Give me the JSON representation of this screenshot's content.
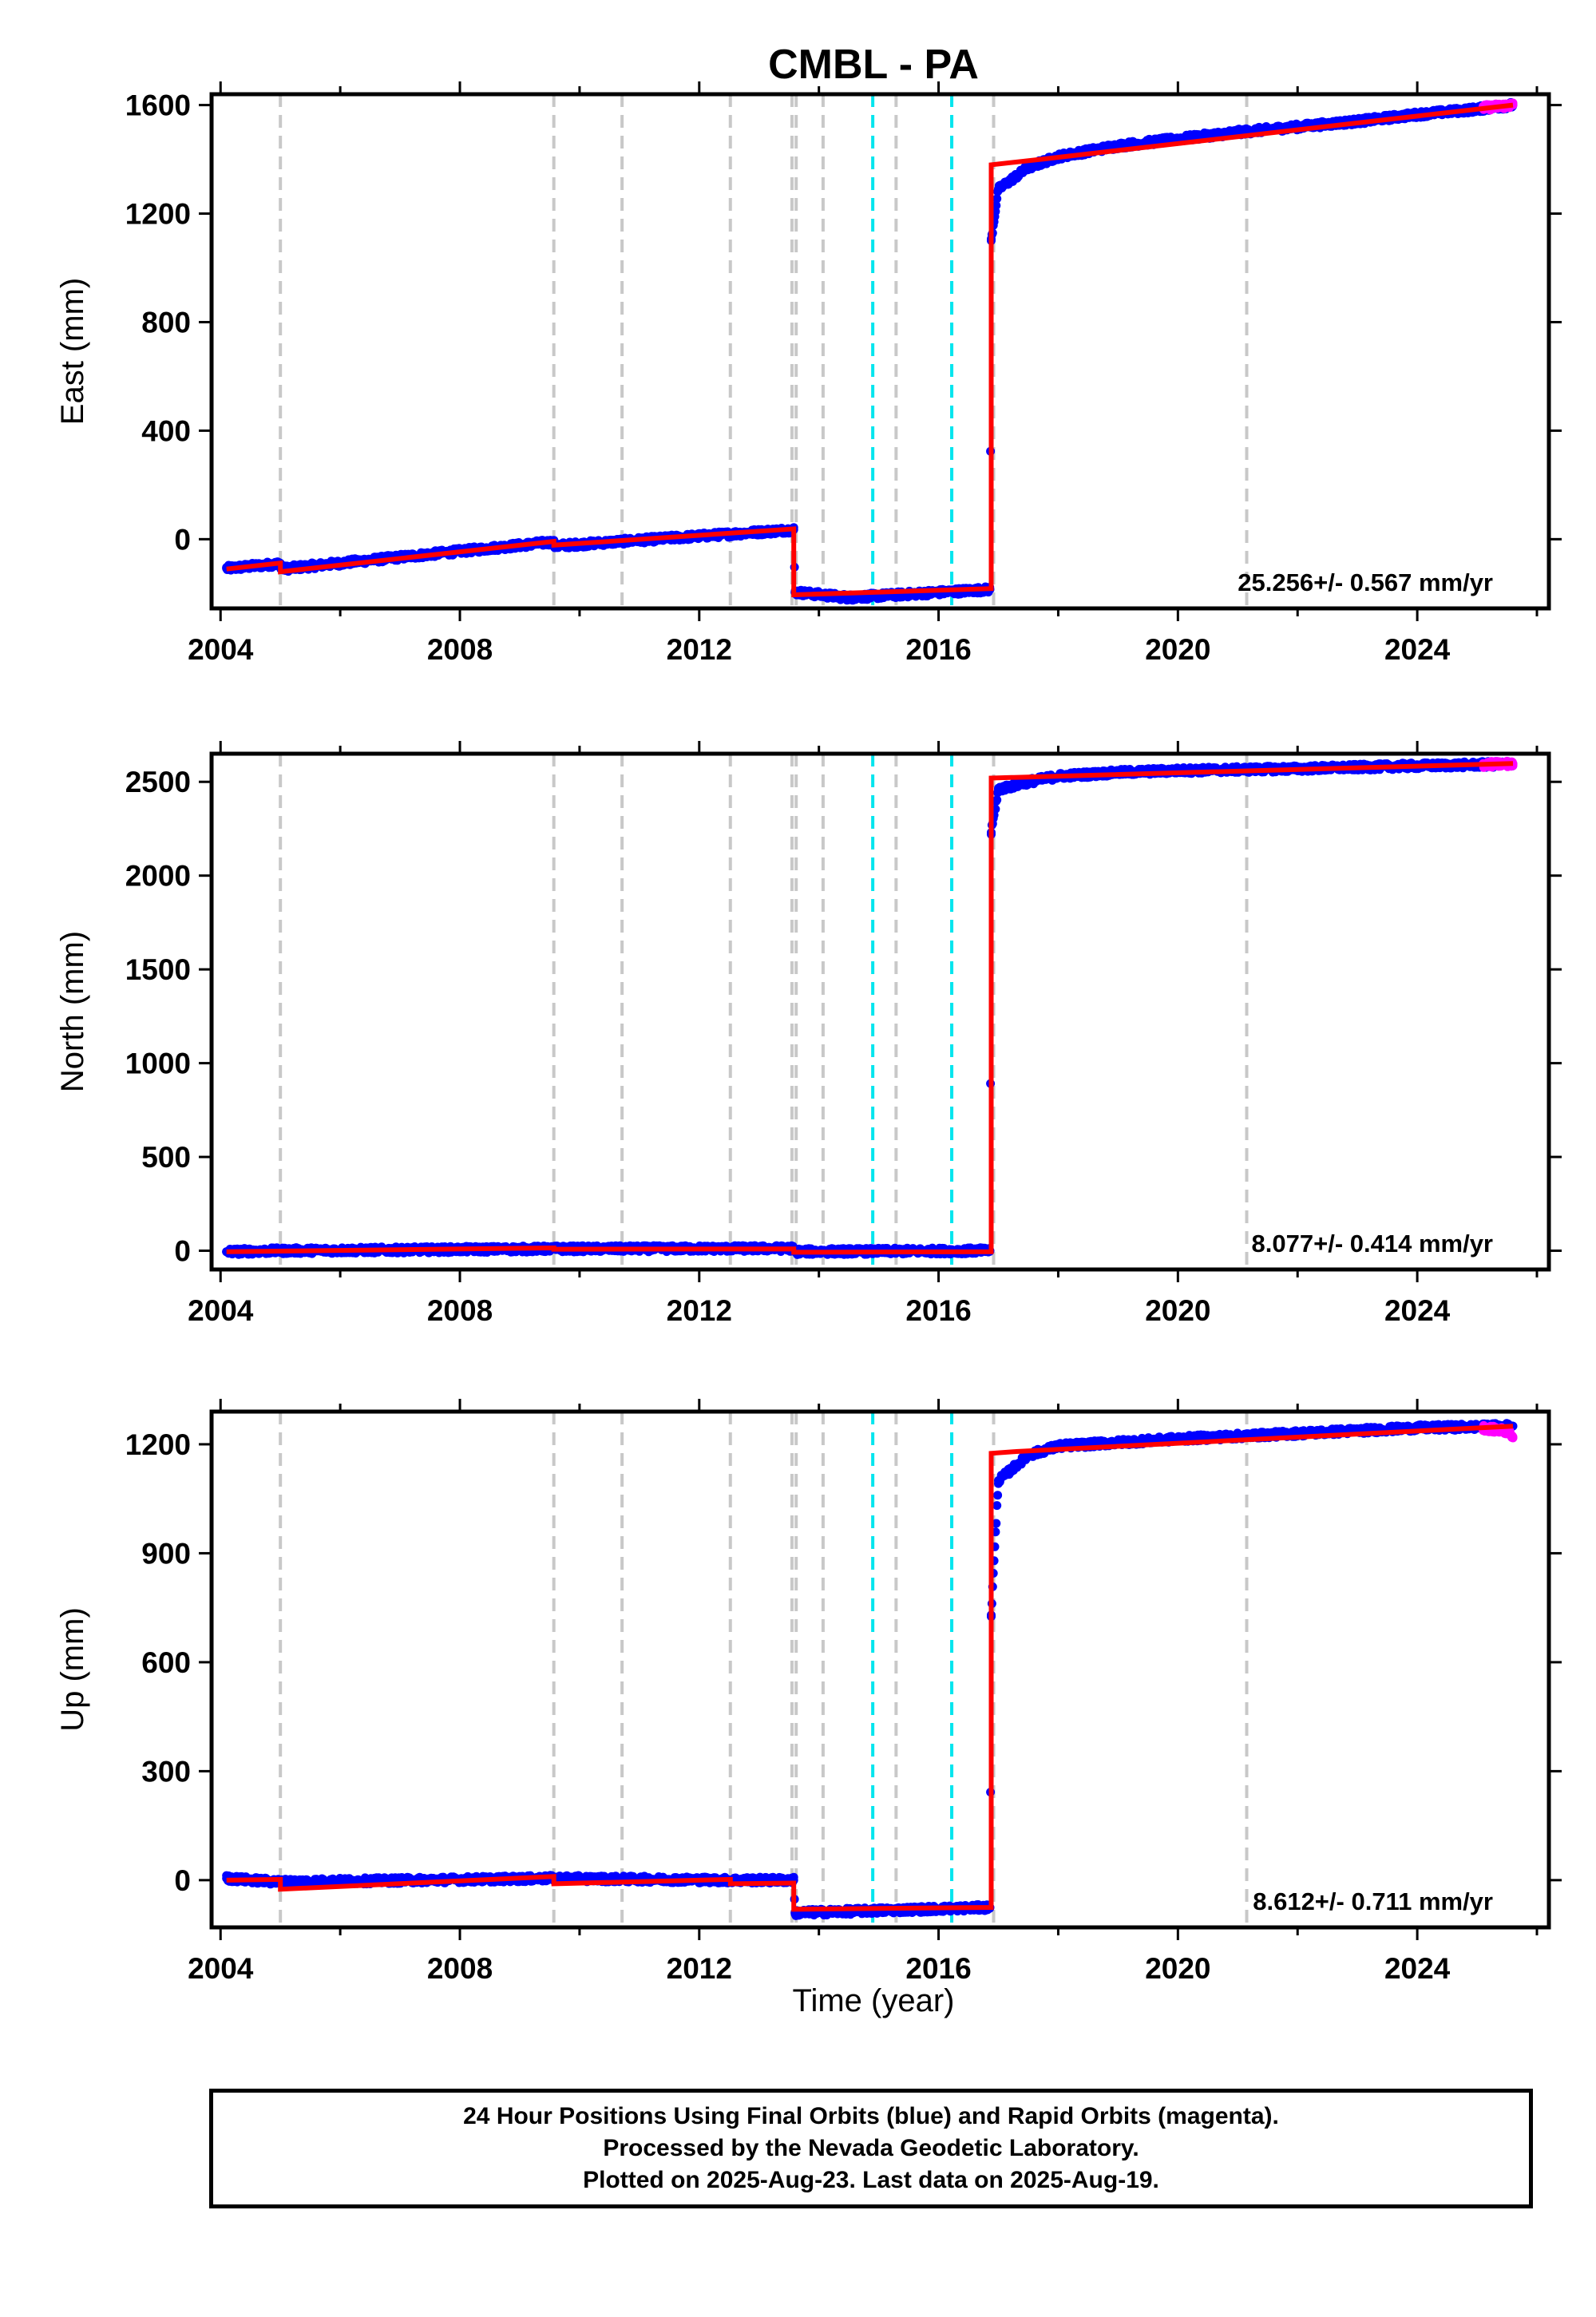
{
  "chart_data": {
    "type": "line",
    "title": "CMBL - PA",
    "xlabel": "Time (year)",
    "xlim": [
      2003.85,
      2026.2
    ],
    "x_ticks": [
      2004,
      2008,
      2012,
      2016,
      2020,
      2024
    ],
    "x_tick_labels": [
      "2004",
      "2008",
      "2012",
      "2016",
      "2020",
      "2024"
    ],
    "event_lines": {
      "gray": [
        2005.0,
        2009.57,
        2010.71,
        2012.52,
        2013.55,
        2013.62,
        2014.07,
        2015.29,
        2016.92,
        2021.15
      ],
      "cyan": [
        2014.9,
        2016.22
      ]
    },
    "legend": "none",
    "panels": [
      {
        "name": "east",
        "ylabel": "East (mm)",
        "ylim": [
          -255,
          1640
        ],
        "y_ticks": [
          0,
          400,
          800,
          1200,
          1600
        ],
        "y_tick_labels": [
          "0",
          "400",
          "800",
          "1200",
          "1600"
        ],
        "rate": "25.256+/- 0.567 mm/yr",
        "series": [
          {
            "color": "blue",
            "x": [
              2004.1,
              2005.0,
              2005.01,
              2009.57,
              2009.58,
              2013.58,
              2013.6,
              2014.5,
              2016.86,
              2016.88,
              2017.0,
              2017.5,
              2018.0,
              2019.0,
              2020.0,
              2021.0,
              2022.0,
              2023.0,
              2024.0,
              2025.0,
              2025.6
            ],
            "values": [
              -108,
              -90,
              -110,
              -10,
              -25,
              35,
              -195,
              -215,
              -185,
              1100,
              1290,
              1370,
              1410,
              1450,
              1475,
              1500,
              1520,
              1540,
              1565,
              1585,
              1600
            ]
          },
          {
            "color": "magenta",
            "x": [
              2025.1,
              2025.6
            ],
            "values": [
              1590,
              1600
            ]
          },
          {
            "color": "red",
            "x": [
              2004.1,
              2005.0,
              2005.0,
              2009.57,
              2009.57,
              2013.58,
              2013.58,
              2016.88,
              2016.88,
              2017.7,
              2025.6
            ],
            "values": [
              -110,
              -88,
              -120,
              -8,
              -22,
              38,
              -205,
              -182,
              1380,
              1400,
              1600
            ]
          }
        ]
      },
      {
        "name": "north",
        "ylabel": "North (mm)",
        "ylim": [
          -100,
          2650
        ],
        "y_ticks": [
          0,
          500,
          1000,
          1500,
          2000,
          2500
        ],
        "y_tick_labels": [
          "0",
          "500",
          "1000",
          "1500",
          "2000",
          "2500"
        ],
        "rate": "8.077+/- 0.414 mm/yr",
        "series": [
          {
            "color": "blue",
            "x": [
              2004.1,
              2005.0,
              2009.57,
              2013.58,
              2013.6,
              2016.86,
              2016.88,
              2017.0,
              2017.5,
              2018.0,
              2019.0,
              2020.0,
              2022.0,
              2024.0,
              2025.6
            ],
            "values": [
              -5,
              0,
              10,
              12,
              -5,
              0,
              2230,
              2460,
              2500,
              2530,
              2550,
              2560,
              2570,
              2585,
              2595
            ]
          },
          {
            "color": "magenta",
            "x": [
              2025.1,
              2025.6
            ],
            "values": [
              2592,
              2596
            ]
          },
          {
            "color": "red",
            "x": [
              2004.1,
              2009.57,
              2009.57,
              2013.58,
              2013.58,
              2016.88,
              2016.88,
              2025.6
            ],
            "values": [
              -5,
              15,
              8,
              10,
              -8,
              -5,
              2520,
              2598
            ]
          }
        ]
      },
      {
        "name": "up",
        "ylabel": "Up (mm)",
        "ylim": [
          -130,
          1290
        ],
        "y_ticks": [
          0,
          300,
          600,
          900,
          1200
        ],
        "y_tick_labels": [
          "0",
          "300",
          "600",
          "900",
          "1200"
        ],
        "rate": "8.612+/- 0.711 mm/yr",
        "series": [
          {
            "color": "blue",
            "x": [
              2004.1,
              2005.0,
              2009.57,
              2012.52,
              2013.58,
              2013.6,
              2016.86,
              2016.88,
              2017.0,
              2017.5,
              2018.0,
              2019.0,
              2020.0,
              2022.0,
              2024.0,
              2025.6
            ],
            "values": [
              5,
              -5,
              5,
              0,
              0,
              -90,
              -75,
              730,
              1100,
              1170,
              1195,
              1205,
              1215,
              1230,
              1245,
              1250
            ]
          },
          {
            "color": "magenta",
            "x": [
              2025.1,
              2025.55,
              2025.6
            ],
            "values": [
              1245,
              1235,
              1220
            ]
          },
          {
            "color": "red",
            "x": [
              2004.1,
              2005.0,
              2005.0,
              2009.57,
              2009.57,
              2012.52,
              2012.52,
              2013.58,
              2013.58,
              2016.88,
              2016.88,
              2017.3,
              2025.6
            ],
            "values": [
              0,
              2,
              -25,
              10,
              -10,
              2,
              -10,
              -8,
              -80,
              -75,
              1175,
              1180,
              1250
            ]
          }
        ]
      }
    ]
  },
  "footer": {
    "line1": "24 Hour Positions Using Final Orbits (blue) and Rapid Orbits (magenta).",
    "line2": "Processed by the Nevada Geodetic Laboratory.",
    "line3": "Plotted on 2025-Aug-23. Last data on 2025-Aug-19."
  },
  "colors": {
    "blue": "#0000ff",
    "magenta": "#ff00ff",
    "red": "#ff0000",
    "gray": "#c8c8c8",
    "cyan": "#00e5ee"
  }
}
